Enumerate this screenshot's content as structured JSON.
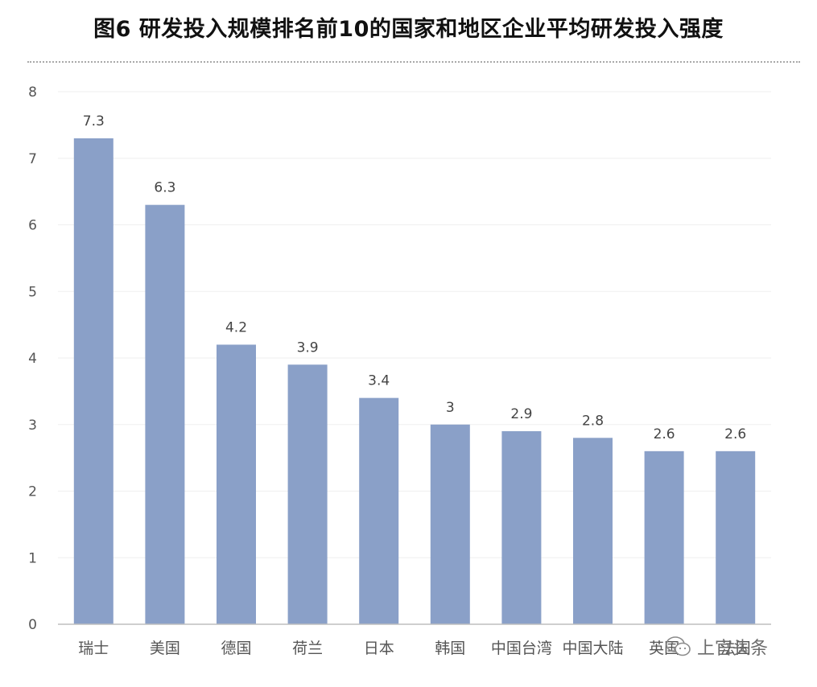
{
  "chart_data": {
    "type": "bar",
    "title": "图6 研发投入规模排名前10的国家和地区企业平均研发投入强度",
    "xlabel": "",
    "ylabel": "",
    "categories": [
      "瑞士",
      "美国",
      "德国",
      "荷兰",
      "日本",
      "韩国",
      "中国台湾",
      "中国大陆",
      "英国",
      "法国"
    ],
    "values": [
      7.3,
      6.3,
      4.2,
      3.9,
      3.4,
      3,
      2.9,
      2.8,
      2.6,
      2.6
    ],
    "value_labels": [
      "7.3",
      "6.3",
      "4.2",
      "3.9",
      "3.4",
      "3",
      "2.9",
      "2.8",
      "2.6",
      "2.6"
    ],
    "ylim": [
      0,
      8
    ],
    "yticks": [
      "0",
      "1",
      "2",
      "3",
      "4",
      "5",
      "6",
      "7",
      "8"
    ],
    "grid": true,
    "bar_color": "#8aa0c8"
  },
  "watermark": {
    "text": "上官头条",
    "icon": "wechat-icon"
  }
}
